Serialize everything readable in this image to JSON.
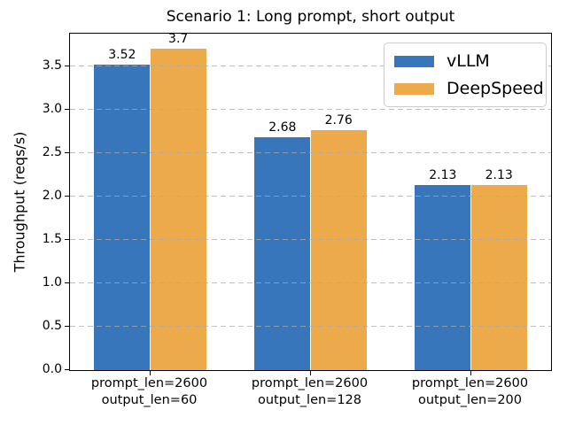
{
  "chart_data": {
    "type": "bar",
    "title": "Scenario 1: Long prompt, short output",
    "ylabel": "Throughput (reqs/s)",
    "xlabel": "",
    "categories": [
      [
        "prompt_len=2600",
        "output_len=60"
      ],
      [
        "prompt_len=2600",
        "output_len=128"
      ],
      [
        "prompt_len=2600",
        "output_len=200"
      ]
    ],
    "series": [
      {
        "name": "vLLM",
        "color": "#3876bc",
        "values": [
          3.52,
          2.68,
          2.13
        ]
      },
      {
        "name": "DeepSpeed",
        "color": "#edaa4a",
        "values": [
          3.7,
          2.76,
          2.13
        ]
      }
    ],
    "bar_value_labels": [
      [
        "3.52",
        "2.68",
        "2.13"
      ],
      [
        "3.7",
        "2.76",
        "2.13"
      ]
    ],
    "ylim": [
      0,
      3.875
    ],
    "yticks": [
      "0.0",
      "0.5",
      "1.0",
      "1.5",
      "2.0",
      "2.5",
      "3.0",
      "3.5"
    ],
    "bar_width_fraction": 0.35,
    "grid": "dashed-horizontal",
    "legend_position": "upper right",
    "grid_color": "#aaaaaa",
    "spine_color": "#000000"
  }
}
